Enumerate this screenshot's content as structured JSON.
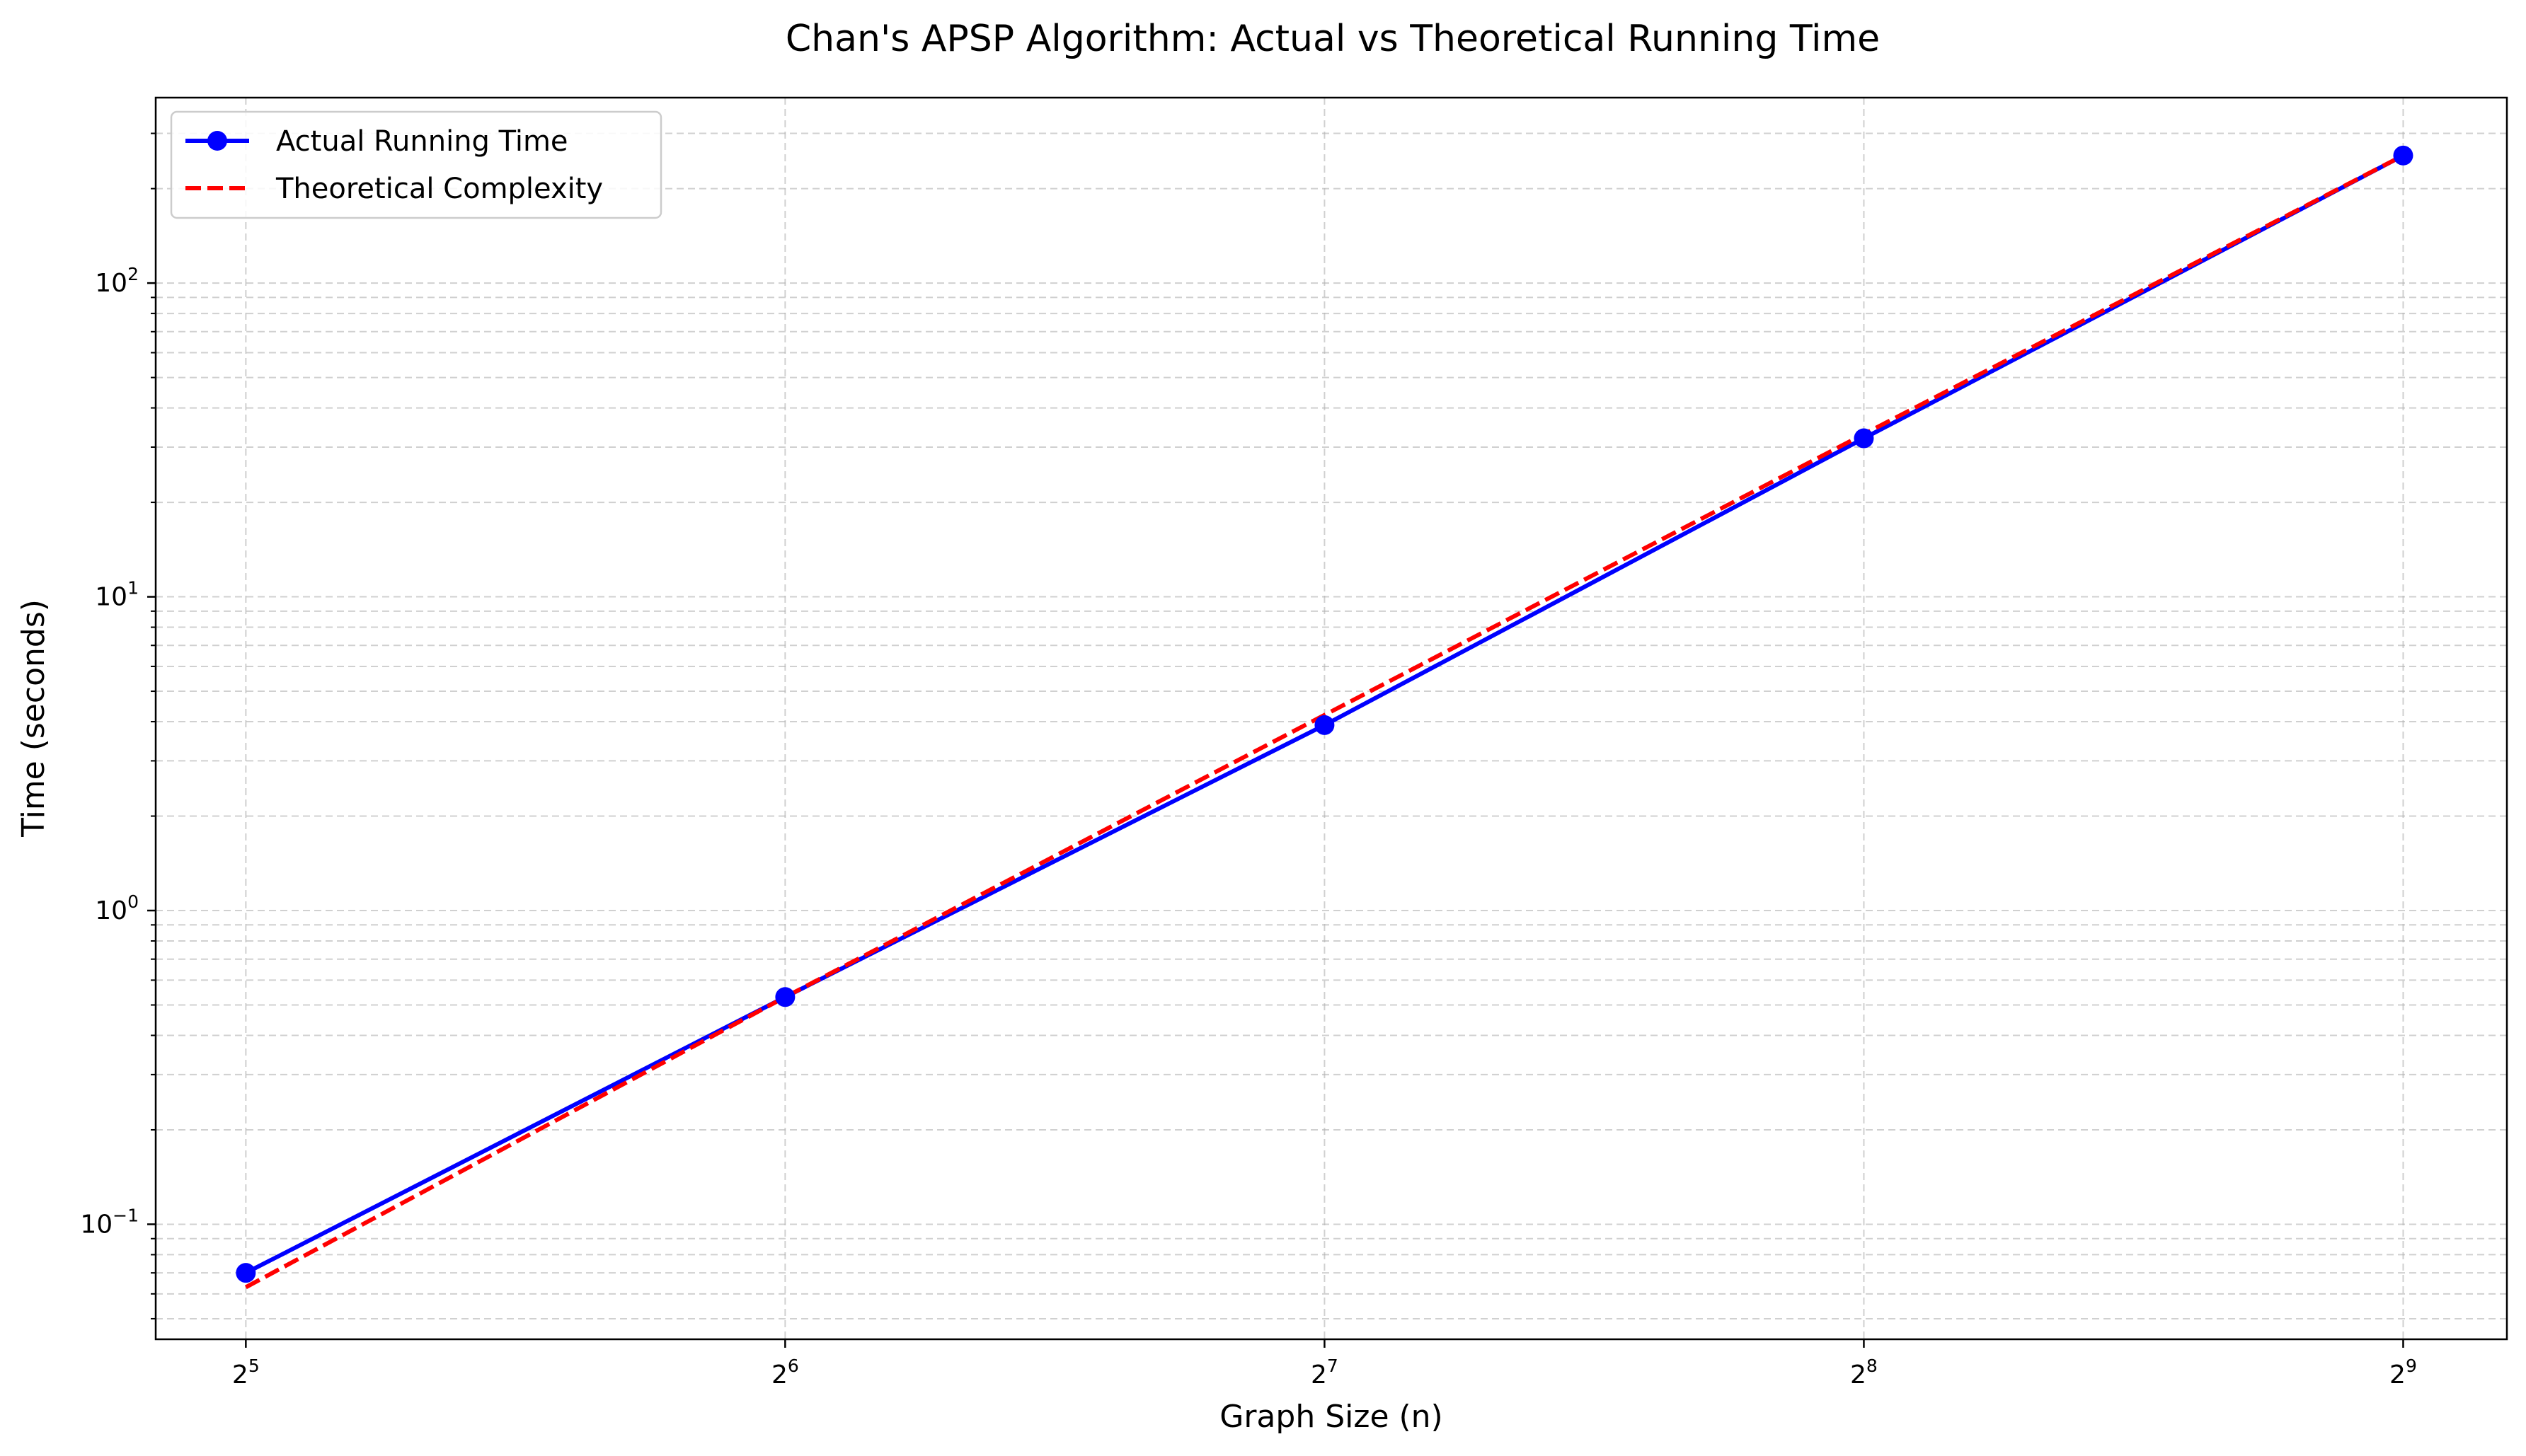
{
  "chart_data": {
    "type": "line",
    "title": "Chan's APSP Algorithm: Actual vs Theoretical Running Time",
    "xlabel": "Graph Size (n)",
    "ylabel": "Time (seconds)",
    "x_scale": "log2",
    "y_scale": "log10",
    "xlim": [
      28.5,
      585
    ],
    "ylim": [
      0.043,
      390
    ],
    "grid": true,
    "legend_position": "top-left",
    "x_ticks": [
      {
        "base": "2",
        "exp": "5",
        "value": 32
      },
      {
        "base": "2",
        "exp": "6",
        "value": 64
      },
      {
        "base": "2",
        "exp": "7",
        "value": 128
      },
      {
        "base": "2",
        "exp": "8",
        "value": 256
      },
      {
        "base": "2",
        "exp": "9",
        "value": 512
      }
    ],
    "y_ticks": [
      {
        "base": "10",
        "exp": "−1",
        "value": 0.1
      },
      {
        "base": "10",
        "exp": "0",
        "value": 1
      },
      {
        "base": "10",
        "exp": "1",
        "value": 10
      },
      {
        "base": "10",
        "exp": "2",
        "value": 100
      }
    ],
    "x": [
      32,
      64,
      128,
      256,
      512
    ],
    "series": [
      {
        "name": "Actual Running Time",
        "values": [
          0.07,
          0.53,
          3.9,
          32,
          255
        ],
        "color": "#0000ff",
        "style": "solid",
        "marker": "circle"
      },
      {
        "name": "Theoretical Complexity",
        "values": [
          0.063,
          0.53,
          4.2,
          33,
          255
        ],
        "color": "#ff0000",
        "style": "dashed",
        "marker": "none"
      }
    ]
  }
}
